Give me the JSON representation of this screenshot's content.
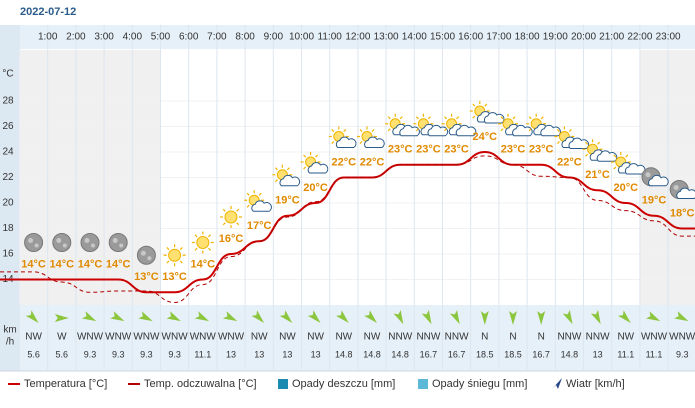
{
  "chart_data": {
    "type": "line",
    "date": "2022-07-12",
    "y_unit": "°C",
    "hour_labels": [
      "1:00",
      "2:00",
      "3:00",
      "4:00",
      "5:00",
      "6:00",
      "7:00",
      "8:00",
      "9:00",
      "10:00",
      "11:00",
      "12:00",
      "13:00",
      "14:00",
      "15:00",
      "16:00",
      "17:00",
      "18:00",
      "19:00",
      "20:00",
      "21:00",
      "22:00",
      "23:00"
    ],
    "ylim": [
      12,
      32
    ],
    "yticks": [
      14,
      16,
      18,
      20,
      22,
      24,
      26,
      28
    ],
    "grid": true,
    "series": [
      {
        "name": "Temperatura [°C]",
        "color": "#cc0000",
        "style": "solid",
        "values": [
          14,
          14,
          14,
          14,
          13,
          13,
          14,
          16,
          17,
          19,
          20,
          22,
          22,
          23,
          23,
          23,
          24,
          23,
          23,
          22,
          21,
          20,
          19,
          18
        ],
        "value_labels": [
          "14°C",
          "14°C",
          "14°C",
          "14°C",
          "13°C",
          "13°C",
          "14°C",
          "16°C",
          "17°C",
          "19°C",
          "20°C",
          "22°C",
          "22°C",
          "23°C",
          "23°C",
          "23°C",
          "24°C",
          "23°C",
          "23°C",
          "22°C",
          "21°C",
          "20°C",
          "19°C",
          "18°C"
        ]
      },
      {
        "name": "Temp. odczuwalna [°C]",
        "color": "#b00000",
        "style": "dashed",
        "values": [
          14.6,
          13.8,
          13,
          13.1,
          13.1,
          12.2,
          13.6,
          15.8,
          17,
          18.9,
          20.1,
          22,
          22,
          23,
          23,
          23,
          23.7,
          23,
          22.1,
          22,
          20.2,
          19.4,
          18.6,
          17.4
        ]
      }
    ],
    "legend_extra": [
      {
        "name": "Opady deszczu [mm]",
        "color": "#1a8ab0"
      },
      {
        "name": "Opady śniegu [mm]",
        "color": "#5bb8d8"
      },
      {
        "name": "Wiatr [km/h]",
        "color": "#2a4a8a"
      }
    ],
    "wind_unit": [
      "km",
      "/h"
    ],
    "wind_direction": [
      "NW",
      "W",
      "WNW",
      "WNW",
      "WNW",
      "WNW",
      "WNW",
      "WNW",
      "NW",
      "NW",
      "NW",
      "NW",
      "NW",
      "NNW",
      "NNW",
      "NNW",
      "N",
      "N",
      "N",
      "NNW",
      "NNW",
      "NW",
      "WNW",
      "WNW"
    ],
    "wind_speed": [
      5.6,
      5.6,
      9.3,
      9.3,
      9.3,
      9.3,
      11.1,
      13,
      13,
      13,
      13,
      14.8,
      14.8,
      14.8,
      16.7,
      16.7,
      18.5,
      18.5,
      16.7,
      14.8,
      13,
      11.1,
      11.1,
      9.3
    ]
  }
}
